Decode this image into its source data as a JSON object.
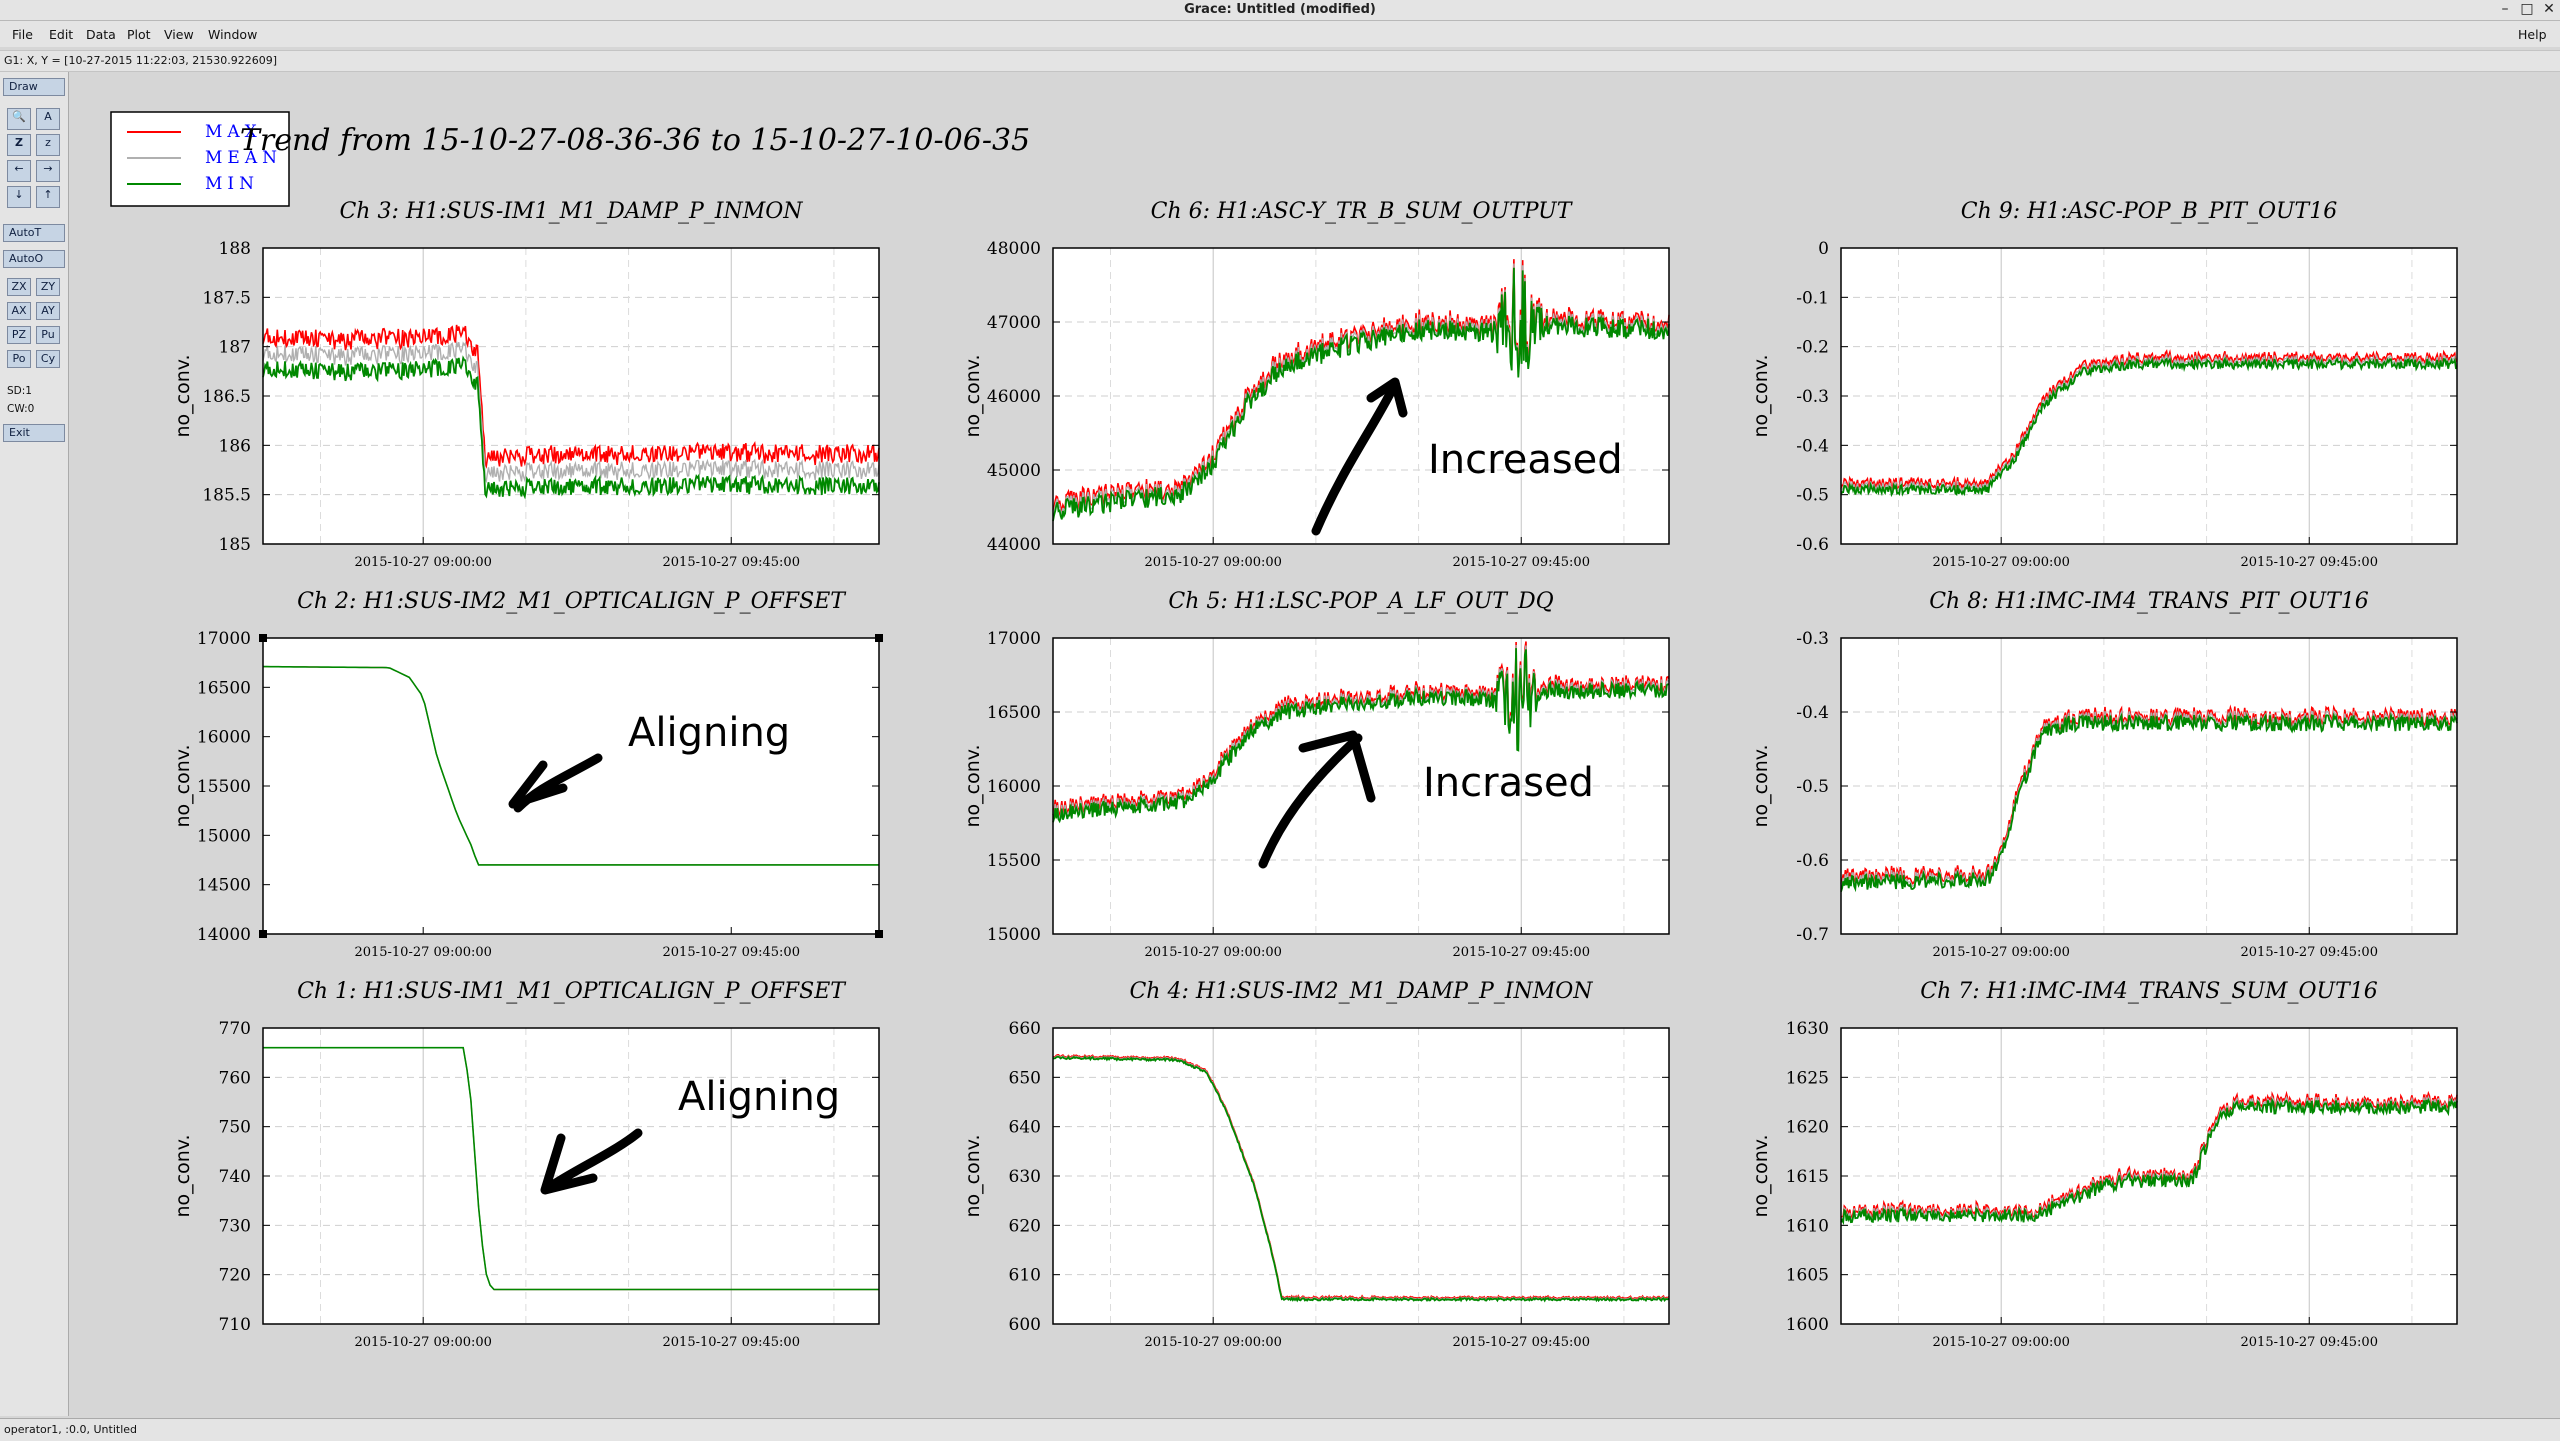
{
  "window": {
    "title": "Grace: Untitled (modified)",
    "help": "Help"
  },
  "menu": {
    "items": [
      "File",
      "Edit",
      "Data",
      "Plot",
      "View",
      "Window"
    ]
  },
  "locator": {
    "text": "G1: X, Y = [10-27-2015 11:22:03, 21530.922609]"
  },
  "toolbox": {
    "draw": "Draw",
    "icons": [
      "zoom-icon",
      "autoscale-icon",
      "zoom-in-icon",
      "zoom-out-icon",
      "scroll-left-icon",
      "scroll-right-icon",
      "scroll-down-icon",
      "scroll-up-icon"
    ],
    "autot": "AutoT",
    "autoo": "AutoO",
    "pairs": [
      [
        "ZX",
        "ZY"
      ],
      [
        "AX",
        "AY"
      ],
      [
        "PZ",
        "Pu"
      ],
      [
        "Po",
        "Cy"
      ]
    ],
    "sd": "SD:1",
    "cw": "CW:0",
    "exit": "Exit"
  },
  "status": {
    "text": "operator1, :0.0, Untitled"
  },
  "colors": {
    "max": "#ff0000",
    "mean": "#b0b0b0",
    "min": "#008800",
    "legend_text": "#0000ff",
    "annotation": "#000000"
  },
  "legend": {
    "entries": [
      "MAX",
      "MEAN",
      "MIN"
    ]
  },
  "figure_title": "Trend from 15-10-27-08-36-36 to 15-10-27-10-06-35",
  "chart_data": [
    {
      "type": "line",
      "title": "Ch 3: H1:SUS-IM1_M1_DAMP_P_INMON",
      "ylabel": "no_conv.",
      "xlim": [
        "2015-10-27 08:36:36",
        "2015-10-27 10:06:35"
      ],
      "ylim": [
        185,
        188
      ],
      "yticks": [
        185,
        185.5,
        186,
        186.5,
        187,
        187.5,
        188
      ],
      "xticks": [
        "2015-10-27 09:00:00",
        "2015-10-27 09:45:00"
      ],
      "grid": true,
      "noise": 0.09,
      "spread": 0.3,
      "x": [
        "2015-10-27 08:36:36",
        "2015-10-27 08:48:00",
        "2015-10-27 08:58:00",
        "2015-10-27 09:06:00",
        "2015-10-27 09:08:00",
        "2015-10-27 09:09:00",
        "2015-10-27 09:15:00",
        "2015-10-27 09:40:00",
        "2015-10-27 10:06:35"
      ],
      "series": [
        {
          "name": "MIN",
          "values": [
            186.78,
            186.74,
            186.76,
            186.8,
            186.6,
            185.55,
            185.57,
            185.6,
            185.58
          ]
        }
      ]
    },
    {
      "type": "line",
      "title": "Ch 6: H1:ASC-Y_TR_B_SUM_OUTPUT",
      "ylabel": "no_conv.",
      "xlim": [
        "2015-10-27 08:36:36",
        "2015-10-27 10:06:35"
      ],
      "ylim": [
        44000,
        48000
      ],
      "yticks": [
        44000,
        45000,
        46000,
        47000,
        48000
      ],
      "xticks": [
        "2015-10-27 09:00:00",
        "2015-10-27 09:45:00"
      ],
      "grid": true,
      "noise": 140,
      "spread": 60,
      "x": [
        "2015-10-27 08:36:36",
        "2015-10-27 08:56:00",
        "2015-10-27 09:00:00",
        "2015-10-27 09:05:00",
        "2015-10-27 09:10:00",
        "2015-10-27 09:20:00",
        "2015-10-27 09:30:00",
        "2015-10-27 09:40:00",
        "2015-10-27 09:48:00",
        "2015-10-27 10:06:35"
      ],
      "series": [
        {
          "name": "MIN",
          "values": [
            44450,
            44700,
            45100,
            45900,
            46400,
            46700,
            46900,
            46850,
            46950,
            46900
          ]
        }
      ],
      "spikes": [
        {
          "x": "2015-10-27 09:44:30",
          "amp": 1000
        }
      ],
      "annotation": "Increased"
    },
    {
      "type": "line",
      "title": "Ch 9: H1:ASC-POP_B_PIT_OUT16",
      "ylabel": "no_conv.",
      "xlim": [
        "2015-10-27 08:36:36",
        "2015-10-27 10:06:35"
      ],
      "ylim": [
        -0.6,
        0
      ],
      "yticks": [
        -0.6,
        -0.5,
        -0.4,
        -0.3,
        -0.2,
        -0.1,
        0
      ],
      "xticks": [
        "2015-10-27 09:00:00",
        "2015-10-27 09:45:00"
      ],
      "grid": true,
      "noise": 0.01,
      "spread": 0.01,
      "x": [
        "2015-10-27 08:36:36",
        "2015-10-27 08:58:00",
        "2015-10-27 09:02:00",
        "2015-10-27 09:06:00",
        "2015-10-27 09:12:00",
        "2015-10-27 09:20:00",
        "2015-10-27 10:06:35"
      ],
      "series": [
        {
          "name": "MIN",
          "values": [
            -0.49,
            -0.49,
            -0.43,
            -0.32,
            -0.25,
            -0.235,
            -0.235
          ]
        }
      ]
    },
    {
      "type": "line",
      "title": "Ch 2: H1:SUS-IM2_M1_OPTICALIGN_P_OFFSET",
      "ylabel": "no_conv.",
      "xlim": [
        "2015-10-27 08:36:36",
        "2015-10-27 10:06:35"
      ],
      "ylim": [
        14000,
        17000
      ],
      "yticks": [
        14000,
        14500,
        15000,
        15500,
        16000,
        16500,
        17000
      ],
      "xticks": [
        "2015-10-27 09:00:00",
        "2015-10-27 09:45:00"
      ],
      "grid": false,
      "selected": true,
      "noise": 0,
      "spread": 0,
      "x": [
        "2015-10-27 08:36:36",
        "2015-10-27 08:55:00",
        "2015-10-27 08:58:00",
        "2015-10-27 09:00:00",
        "2015-10-27 09:02:00",
        "2015-10-27 09:05:00",
        "2015-10-27 09:07:00",
        "2015-10-27 09:08:00",
        "2015-10-27 10:06:35"
      ],
      "series": [
        {
          "name": "MIN",
          "values": [
            16710,
            16700,
            16600,
            16400,
            15800,
            15200,
            14900,
            14700,
            14700
          ]
        }
      ],
      "annotation": "Aligning"
    },
    {
      "type": "line",
      "title": "Ch 5: H1:LSC-POP_A_LF_OUT_DQ",
      "ylabel": "no_conv.",
      "xlim": [
        "2015-10-27 08:36:36",
        "2015-10-27 10:06:35"
      ],
      "ylim": [
        15000,
        17000
      ],
      "yticks": [
        15000,
        15500,
        16000,
        16500,
        17000
      ],
      "xticks": [
        "2015-10-27 09:00:00",
        "2015-10-27 09:45:00"
      ],
      "grid": true,
      "noise": 55,
      "spread": 25,
      "x": [
        "2015-10-27 08:36:36",
        "2015-10-27 08:56:00",
        "2015-10-27 09:00:00",
        "2015-10-27 09:05:00",
        "2015-10-27 09:10:00",
        "2015-10-27 09:20:00",
        "2015-10-27 09:30:00",
        "2015-10-27 09:40:00",
        "2015-10-27 09:48:00",
        "2015-10-27 10:06:35"
      ],
      "series": [
        {
          "name": "MIN",
          "values": [
            15810,
            15900,
            16050,
            16350,
            16500,
            16560,
            16600,
            16590,
            16640,
            16650
          ]
        }
      ],
      "spikes": [
        {
          "x": "2015-10-27 09:44:30",
          "amp": 380
        }
      ],
      "annotation": "Incrased"
    },
    {
      "type": "line",
      "title": "Ch 8: H1:IMC-IM4_TRANS_PIT_OUT16",
      "ylabel": "no_conv.",
      "xlim": [
        "2015-10-27 08:36:36",
        "2015-10-27 10:06:35"
      ],
      "ylim": [
        -0.7,
        -0.3
      ],
      "yticks": [
        -0.7,
        -0.6,
        -0.5,
        -0.4,
        -0.3
      ],
      "xticks": [
        "2015-10-27 09:00:00",
        "2015-10-27 09:45:00"
      ],
      "grid": true,
      "noise": 0.011,
      "spread": 0.005,
      "x": [
        "2015-10-27 08:36:36",
        "2015-10-27 08:58:00",
        "2015-10-27 09:00:00",
        "2015-10-27 09:03:00",
        "2015-10-27 09:06:00",
        "2015-10-27 09:10:00",
        "2015-10-27 10:06:35"
      ],
      "series": [
        {
          "name": "MIN",
          "values": [
            -0.632,
            -0.625,
            -0.6,
            -0.5,
            -0.43,
            -0.415,
            -0.415
          ]
        }
      ]
    },
    {
      "type": "line",
      "title": "Ch 1: H1:SUS-IM1_M1_OPTICALIGN_P_OFFSET",
      "ylabel": "no_conv.",
      "xlim": [
        "2015-10-27 08:36:36",
        "2015-10-27 10:06:35"
      ],
      "ylim": [
        710,
        770
      ],
      "yticks": [
        710,
        720,
        730,
        740,
        750,
        760,
        770
      ],
      "xticks": [
        "2015-10-27 09:00:00",
        "2015-10-27 09:45:00"
      ],
      "grid": true,
      "noise": 0,
      "spread": 0,
      "x": [
        "2015-10-27 08:36:36",
        "2015-10-27 09:06:00",
        "2015-10-27 09:07:00",
        "2015-10-27 09:08:00",
        "2015-10-27 09:09:00",
        "2015-10-27 09:10:00",
        "2015-10-27 10:06:35"
      ],
      "series": [
        {
          "name": "MIN",
          "values": [
            766,
            766,
            755,
            735,
            721,
            717,
            717
          ]
        }
      ],
      "annotation": "Aligning"
    },
    {
      "type": "line",
      "title": "Ch 4: H1:SUS-IM2_M1_DAMP_P_INMON",
      "ylabel": "no_conv.",
      "xlim": [
        "2015-10-27 08:36:36",
        "2015-10-27 10:06:35"
      ],
      "ylim": [
        600,
        660
      ],
      "yticks": [
        600,
        610,
        620,
        630,
        640,
        650,
        660
      ],
      "xticks": [
        "2015-10-27 09:00:00",
        "2015-10-27 09:45:00"
      ],
      "grid": true,
      "noise": 0.25,
      "spread": 0.3,
      "x": [
        "2015-10-27 08:36:36",
        "2015-10-27 08:55:00",
        "2015-10-27 08:59:00",
        "2015-10-27 09:02:00",
        "2015-10-27 09:06:00",
        "2015-10-27 09:09:00",
        "2015-10-27 09:10:00",
        "2015-10-27 10:06:35"
      ],
      "series": [
        {
          "name": "MIN",
          "values": [
            654,
            653.5,
            651,
            643,
            628,
            612,
            605,
            605
          ]
        }
      ]
    },
    {
      "type": "line",
      "title": "Ch 7: H1:IMC-IM4_TRANS_SUM_OUT16",
      "ylabel": "no_conv.",
      "xlim": [
        "2015-10-27 08:36:36",
        "2015-10-27 10:06:35"
      ],
      "ylim": [
        1600,
        1630
      ],
      "yticks": [
        1600,
        1605,
        1610,
        1615,
        1620,
        1625,
        1630
      ],
      "xticks": [
        "2015-10-27 09:00:00",
        "2015-10-27 09:45:00"
      ],
      "grid": true,
      "noise": 0.7,
      "spread": 0.3,
      "x": [
        "2015-10-27 08:36:36",
        "2015-10-27 09:05:00",
        "2015-10-27 09:15:00",
        "2015-10-27 09:18:00",
        "2015-10-27 09:28:00",
        "2015-10-27 09:31:00",
        "2015-10-27 09:34:00",
        "2015-10-27 09:50:00",
        "2015-10-27 10:06:35"
      ],
      "series": [
        {
          "name": "MIN",
          "values": [
            1611,
            1611,
            1614,
            1614.5,
            1614.5,
            1620,
            1622,
            1622,
            1622
          ]
        }
      ]
    }
  ]
}
